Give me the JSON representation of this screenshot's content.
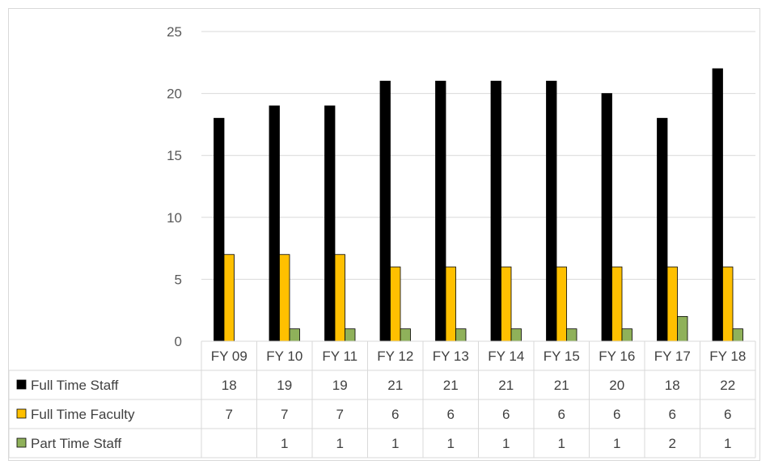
{
  "chart_data": {
    "type": "bar",
    "title": "",
    "xlabel": "",
    "ylabel": "",
    "ylim": [
      0,
      25
    ],
    "yticks": [
      0,
      5,
      10,
      15,
      20,
      25
    ],
    "grid": true,
    "legend": "data-table",
    "categories": [
      "FY 09",
      "FY 10",
      "FY 11",
      "FY 12",
      "FY 13",
      "FY 14",
      "FY 15",
      "FY 16",
      "FY 17",
      "FY 18"
    ],
    "series": [
      {
        "name": "Full Time Staff",
        "color": "#000000",
        "values": [
          18,
          19,
          19,
          21,
          21,
          21,
          21,
          20,
          18,
          22
        ]
      },
      {
        "name": "Full Time Faculty",
        "color": "#ffc000",
        "values": [
          7,
          7,
          7,
          6,
          6,
          6,
          6,
          6,
          6,
          6
        ]
      },
      {
        "name": "Part Time Staff",
        "color": "#8fb15a",
        "values": [
          null,
          1,
          1,
          1,
          1,
          1,
          1,
          1,
          2,
          1
        ]
      }
    ]
  }
}
